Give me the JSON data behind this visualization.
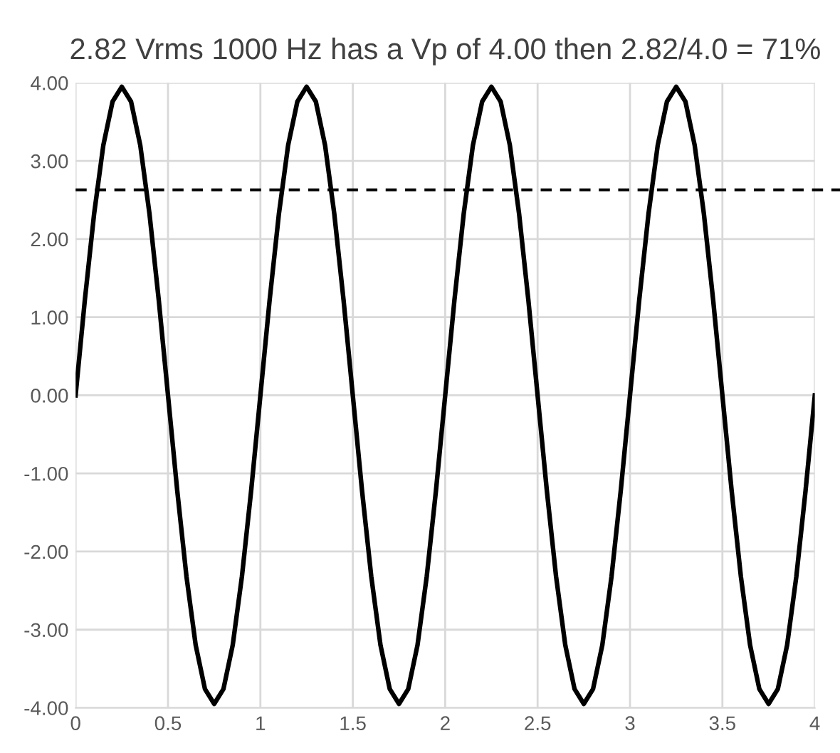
{
  "chart_data": {
    "type": "line",
    "title": "2.82 Vrms 1000 Hz has a Vp of 4.00 then 2.82/4.0 = 71%",
    "x": [
      0,
      0.05,
      0.1,
      0.15,
      0.2,
      0.25,
      0.3,
      0.35,
      0.4,
      0.45,
      0.5,
      0.55,
      0.6,
      0.65,
      0.7,
      0.75,
      0.8,
      0.85,
      0.9,
      0.95,
      1,
      1.05,
      1.1,
      1.15,
      1.2,
      1.25,
      1.3,
      1.35,
      1.4,
      1.45,
      1.5,
      1.55,
      1.6,
      1.65,
      1.7,
      1.75,
      1.8,
      1.85,
      1.9,
      1.95,
      2,
      2.05,
      2.1,
      2.15,
      2.2,
      2.25,
      2.3,
      2.35,
      2.4,
      2.45,
      2.5,
      2.55,
      2.6,
      2.65,
      2.7,
      2.75,
      2.8,
      2.85,
      2.9,
      2.95,
      3,
      3.05,
      3.1,
      3.15,
      3.2,
      3.25,
      3.3,
      3.35,
      3.4,
      3.45,
      3.5,
      3.55,
      3.6,
      3.65,
      3.7,
      3.75,
      3.8,
      3.85,
      3.9,
      3.95,
      4
    ],
    "series": [
      {
        "color": "#000000",
        "values": [
          0,
          1.22,
          2.32,
          3.2,
          3.76,
          3.95,
          3.76,
          3.2,
          2.32,
          1.22,
          0,
          -1.22,
          -2.32,
          -3.2,
          -3.76,
          -3.95,
          -3.76,
          -3.2,
          -2.32,
          -1.22,
          0,
          1.22,
          2.32,
          3.2,
          3.76,
          3.95,
          3.76,
          3.2,
          2.32,
          1.22,
          0,
          -1.22,
          -2.32,
          -3.2,
          -3.76,
          -3.95,
          -3.76,
          -3.2,
          -2.32,
          -1.22,
          0,
          1.22,
          2.32,
          3.2,
          3.76,
          3.95,
          3.76,
          3.2,
          2.32,
          1.22,
          0,
          -1.22,
          -2.32,
          -3.2,
          -3.76,
          -3.95,
          -3.76,
          -3.2,
          -2.32,
          -1.22,
          0,
          1.22,
          2.32,
          3.2,
          3.76,
          3.95,
          3.76,
          3.2,
          2.32,
          1.22,
          0,
          -1.22,
          -2.32,
          -3.2,
          -3.76,
          -3.95,
          -3.76,
          -3.2,
          -2.32,
          -1.22,
          0
        ]
      }
    ],
    "xlim": [
      0,
      4
    ],
    "xticks": [
      0,
      0.5,
      1,
      1.5,
      2,
      2.5,
      3,
      3.5,
      4
    ],
    "ylim": [
      -4,
      4
    ],
    "yticks": [
      {
        "value": -4,
        "label": "-4.00"
      },
      {
        "value": -3,
        "label": "-3.00"
      },
      {
        "value": -2,
        "label": "-2.00"
      },
      {
        "value": -1,
        "label": "-1.00"
      },
      {
        "value": 0,
        "label": "0.00"
      },
      {
        "value": 1,
        "label": "1.00"
      },
      {
        "value": 2,
        "label": "2.00"
      },
      {
        "value": 3,
        "label": "3.00"
      },
      {
        "value": 4,
        "label": "4.00"
      }
    ],
    "ref_lines": [
      {
        "axis": "y",
        "value": 2.63,
        "color": "#000000",
        "line_style": "dashed"
      }
    ],
    "grid": true
  }
}
